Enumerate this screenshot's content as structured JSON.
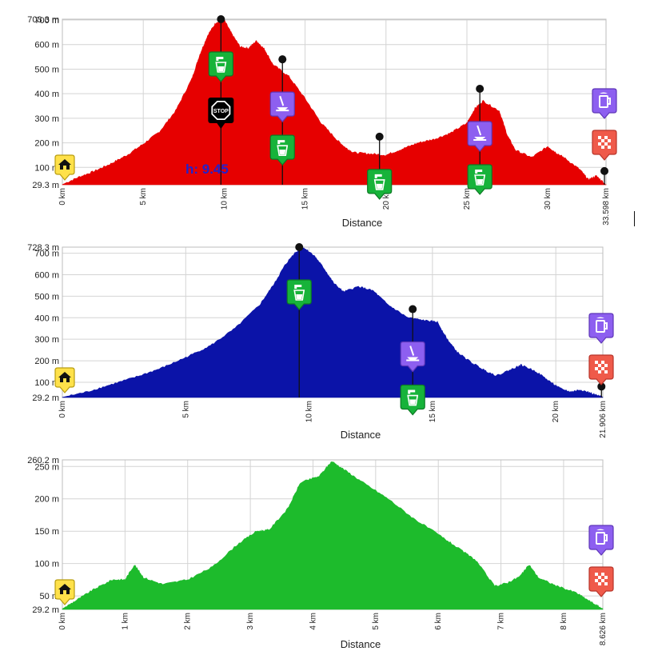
{
  "chart_data": [
    {
      "type": "area",
      "color": "#e60000",
      "xlabel": "Distance",
      "x_unit": "km",
      "y_unit": "m",
      "xlim": [
        0,
        33.598
      ],
      "ylim": [
        29.3,
        703.3
      ],
      "y_ticks": [
        {
          "v": 29.3,
          "label": "29.3 m"
        },
        {
          "v": 100,
          "label": "100 m"
        },
        {
          "v": 200,
          "label": "200 m"
        },
        {
          "v": 300,
          "label": "300 m"
        },
        {
          "v": 400,
          "label": "400 m"
        },
        {
          "v": 500,
          "label": "500 m"
        },
        {
          "v": 600,
          "label": "600 m"
        },
        {
          "v": 700,
          "label": "700 m"
        },
        {
          "v": 703.3,
          "label": "703.3 m"
        }
      ],
      "x_ticks": [
        {
          "v": 0,
          "label": "0 km"
        },
        {
          "v": 5,
          "label": "5 km"
        },
        {
          "v": 10,
          "label": "10 km"
        },
        {
          "v": 15,
          "label": "15 km"
        },
        {
          "v": 20,
          "label": "20 km"
        },
        {
          "v": 25,
          "label": "25 km"
        },
        {
          "v": 30,
          "label": "30 km"
        },
        {
          "v": 33.598,
          "label": "33.598 km"
        }
      ],
      "profile": [
        [
          0,
          30
        ],
        [
          1,
          60
        ],
        [
          2,
          85
        ],
        [
          3,
          115
        ],
        [
          4,
          150
        ],
        [
          5,
          195
        ],
        [
          6,
          245
        ],
        [
          7,
          330
        ],
        [
          8,
          460
        ],
        [
          8.5,
          560
        ],
        [
          9,
          640
        ],
        [
          9.5,
          690
        ],
        [
          10,
          700
        ],
        [
          10.5,
          640
        ],
        [
          11,
          590
        ],
        [
          11.5,
          585
        ],
        [
          12,
          615
        ],
        [
          12.5,
          580
        ],
        [
          13,
          520
        ],
        [
          14,
          470
        ],
        [
          15,
          380
        ],
        [
          16,
          280
        ],
        [
          17,
          210
        ],
        [
          17.5,
          180
        ],
        [
          18,
          160
        ],
        [
          19,
          155
        ],
        [
          20,
          150
        ],
        [
          21,
          175
        ],
        [
          22,
          200
        ],
        [
          23,
          215
        ],
        [
          24,
          240
        ],
        [
          25,
          280
        ],
        [
          25.5,
          340
        ],
        [
          26,
          370
        ],
        [
          27,
          330
        ],
        [
          27.5,
          230
        ],
        [
          28,
          170
        ],
        [
          29,
          140
        ],
        [
          30,
          185
        ],
        [
          30.5,
          160
        ],
        [
          31,
          140
        ],
        [
          32,
          90
        ],
        [
          32.5,
          50
        ],
        [
          33,
          65
        ],
        [
          33.598,
          30
        ]
      ],
      "pins": [
        {
          "x": 9.8,
          "top": 703.3,
          "bottom": 29.3,
          "icons": [
            "water-icon",
            "stop-icon"
          ]
        },
        {
          "x": 13.6,
          "top": 540,
          "bottom": 29.3,
          "icons": [
            "restaurant-icon",
            "water-icon"
          ]
        },
        {
          "x": 19.6,
          "top": 225,
          "bottom": 29.3,
          "icons": [
            "water-icon"
          ]
        },
        {
          "x": 25.8,
          "top": 420,
          "bottom": 29.3,
          "icons": [
            "restaurant-icon",
            "water-icon"
          ]
        },
        {
          "x": 33.5,
          "top": 85,
          "bottom": 29.3,
          "icons": []
        }
      ],
      "start_icon": "home-icon",
      "end_icons": [
        "beer-icon",
        "finish-flag-icon"
      ],
      "marker_label": "h: 9.45"
    },
    {
      "type": "area",
      "color": "#0b13a8",
      "xlabel": "Distance",
      "x_unit": "km",
      "y_unit": "m",
      "xlim": [
        0,
        21.906
      ],
      "ylim": [
        29.2,
        728.3
      ],
      "y_ticks": [
        {
          "v": 29.2,
          "label": "29.2 m"
        },
        {
          "v": 100,
          "label": "100 m"
        },
        {
          "v": 200,
          "label": "200 m"
        },
        {
          "v": 300,
          "label": "300 m"
        },
        {
          "v": 400,
          "label": "400 m"
        },
        {
          "v": 500,
          "label": "500 m"
        },
        {
          "v": 600,
          "label": "600 m"
        },
        {
          "v": 700,
          "label": "700 m"
        },
        {
          "v": 728.3,
          "label": "728.3 m"
        }
      ],
      "x_ticks": [
        {
          "v": 0,
          "label": "0 km"
        },
        {
          "v": 5,
          "label": "5 km"
        },
        {
          "v": 10,
          "label": "10 km"
        },
        {
          "v": 15,
          "label": "15 km"
        },
        {
          "v": 20,
          "label": "20 km"
        },
        {
          "v": 21.906,
          "label": "21.906 km"
        }
      ],
      "profile": [
        [
          0,
          30
        ],
        [
          1,
          55
        ],
        [
          2,
          90
        ],
        [
          3,
          125
        ],
        [
          4,
          165
        ],
        [
          5,
          215
        ],
        [
          6,
          270
        ],
        [
          7,
          350
        ],
        [
          8,
          460
        ],
        [
          8.6,
          560
        ],
        [
          9,
          640
        ],
        [
          9.4,
          700
        ],
        [
          9.8,
          725
        ],
        [
          10.2,
          690
        ],
        [
          10.6,
          630
        ],
        [
          11,
          560
        ],
        [
          11.4,
          520
        ],
        [
          12,
          545
        ],
        [
          12.6,
          525
        ],
        [
          13.2,
          460
        ],
        [
          14,
          400
        ],
        [
          14.8,
          385
        ],
        [
          15.2,
          380
        ],
        [
          15.6,
          300
        ],
        [
          16,
          240
        ],
        [
          16.6,
          190
        ],
        [
          17.2,
          150
        ],
        [
          17.6,
          130
        ],
        [
          18.2,
          160
        ],
        [
          18.6,
          180
        ],
        [
          19.2,
          150
        ],
        [
          19.8,
          100
        ],
        [
          20.2,
          70
        ],
        [
          20.6,
          55
        ],
        [
          21,
          65
        ],
        [
          21.4,
          50
        ],
        [
          21.906,
          30
        ]
      ],
      "pins": [
        {
          "x": 9.6,
          "top": 728.3,
          "bottom": 29.2,
          "icons": [
            "water-icon"
          ]
        },
        {
          "x": 14.2,
          "top": 440,
          "bottom": 29.2,
          "icons": [
            "restaurant-icon",
            "water-icon"
          ]
        },
        {
          "x": 21.85,
          "top": 80,
          "bottom": 29.2,
          "icons": []
        }
      ],
      "start_icon": "home-icon",
      "end_icons": [
        "beer-icon",
        "finish-flag-icon"
      ]
    },
    {
      "type": "area",
      "color": "#1dbb2c",
      "xlabel": "Distance",
      "x_unit": "km",
      "y_unit": "m",
      "xlim": [
        0,
        8.626
      ],
      "ylim": [
        29.2,
        260.2
      ],
      "y_ticks": [
        {
          "v": 29.2,
          "label": "29.2 m"
        },
        {
          "v": 50,
          "label": "50 m"
        },
        {
          "v": 100,
          "label": "100 m"
        },
        {
          "v": 150,
          "label": "150 m"
        },
        {
          "v": 200,
          "label": "200 m"
        },
        {
          "v": 250,
          "label": "250 m"
        },
        {
          "v": 260.2,
          "label": "260.2 m"
        }
      ],
      "x_ticks": [
        {
          "v": 0,
          "label": "0 km"
        },
        {
          "v": 1,
          "label": "1 km"
        },
        {
          "v": 2,
          "label": "2 km"
        },
        {
          "v": 3,
          "label": "3 km"
        },
        {
          "v": 4,
          "label": "4 km"
        },
        {
          "v": 5,
          "label": "5 km"
        },
        {
          "v": 6,
          "label": "6 km"
        },
        {
          "v": 7,
          "label": "7 km"
        },
        {
          "v": 8,
          "label": "8 km"
        },
        {
          "v": 8.626,
          "label": "8.626 km"
        }
      ],
      "profile": [
        [
          0,
          30
        ],
        [
          0.25,
          45
        ],
        [
          0.5,
          60
        ],
        [
          0.8,
          75
        ],
        [
          1,
          75
        ],
        [
          1.15,
          98
        ],
        [
          1.3,
          78
        ],
        [
          1.6,
          68
        ],
        [
          2,
          75
        ],
        [
          2.4,
          95
        ],
        [
          2.8,
          130
        ],
        [
          3.1,
          150
        ],
        [
          3.3,
          152
        ],
        [
          3.6,
          185
        ],
        [
          3.8,
          225
        ],
        [
          4.1,
          235
        ],
        [
          4.3,
          258
        ],
        [
          4.5,
          245
        ],
        [
          4.8,
          225
        ],
        [
          5.2,
          200
        ],
        [
          5.6,
          170
        ],
        [
          6,
          145
        ],
        [
          6.3,
          125
        ],
        [
          6.6,
          105
        ],
        [
          6.9,
          65
        ],
        [
          7.1,
          70
        ],
        [
          7.3,
          80
        ],
        [
          7.45,
          98
        ],
        [
          7.6,
          78
        ],
        [
          7.9,
          65
        ],
        [
          8.2,
          55
        ],
        [
          8.45,
          40
        ],
        [
          8.626,
          30
        ]
      ],
      "pins": [],
      "start_icon": "home-icon",
      "end_icons": [
        "beer-icon",
        "finish-flag-icon"
      ]
    }
  ]
}
